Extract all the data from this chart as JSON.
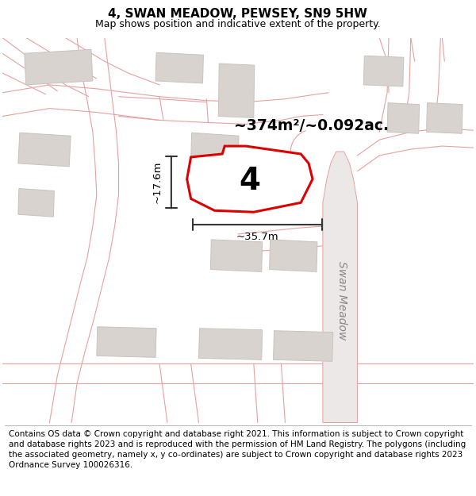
{
  "title": "4, SWAN MEADOW, PEWSEY, SN9 5HW",
  "subtitle": "Map shows position and indicative extent of the property.",
  "footer": "Contains OS data © Crown copyright and database right 2021. This information is subject to Crown copyright and database rights 2023 and is reproduced with the permission of HM Land Registry. The polygons (including the associated geometry, namely x, y co-ordinates) are subject to Crown copyright and database rights 2023 Ordnance Survey 100026316.",
  "area_label": "~374m²/~0.092ac.",
  "width_label": "~35.7m",
  "height_label": "~17.6m",
  "street_label": "Swan Meadow",
  "plot_number": "4",
  "bg_color": "#ffffff",
  "road_line_color": "#e8a0a0",
  "building_fill": "#d8d3cf",
  "building_edge": "#c8c3bf",
  "plot_edge": "#dd0000",
  "plot_fill": "#ffffff",
  "road_fill": "#e8e0e0",
  "swan_meadow_fill": "#e0dcdc",
  "dim_color": "#333333",
  "street_label_color": "#888888",
  "title_fontsize": 11,
  "subtitle_fontsize": 9,
  "footer_fontsize": 7.5
}
